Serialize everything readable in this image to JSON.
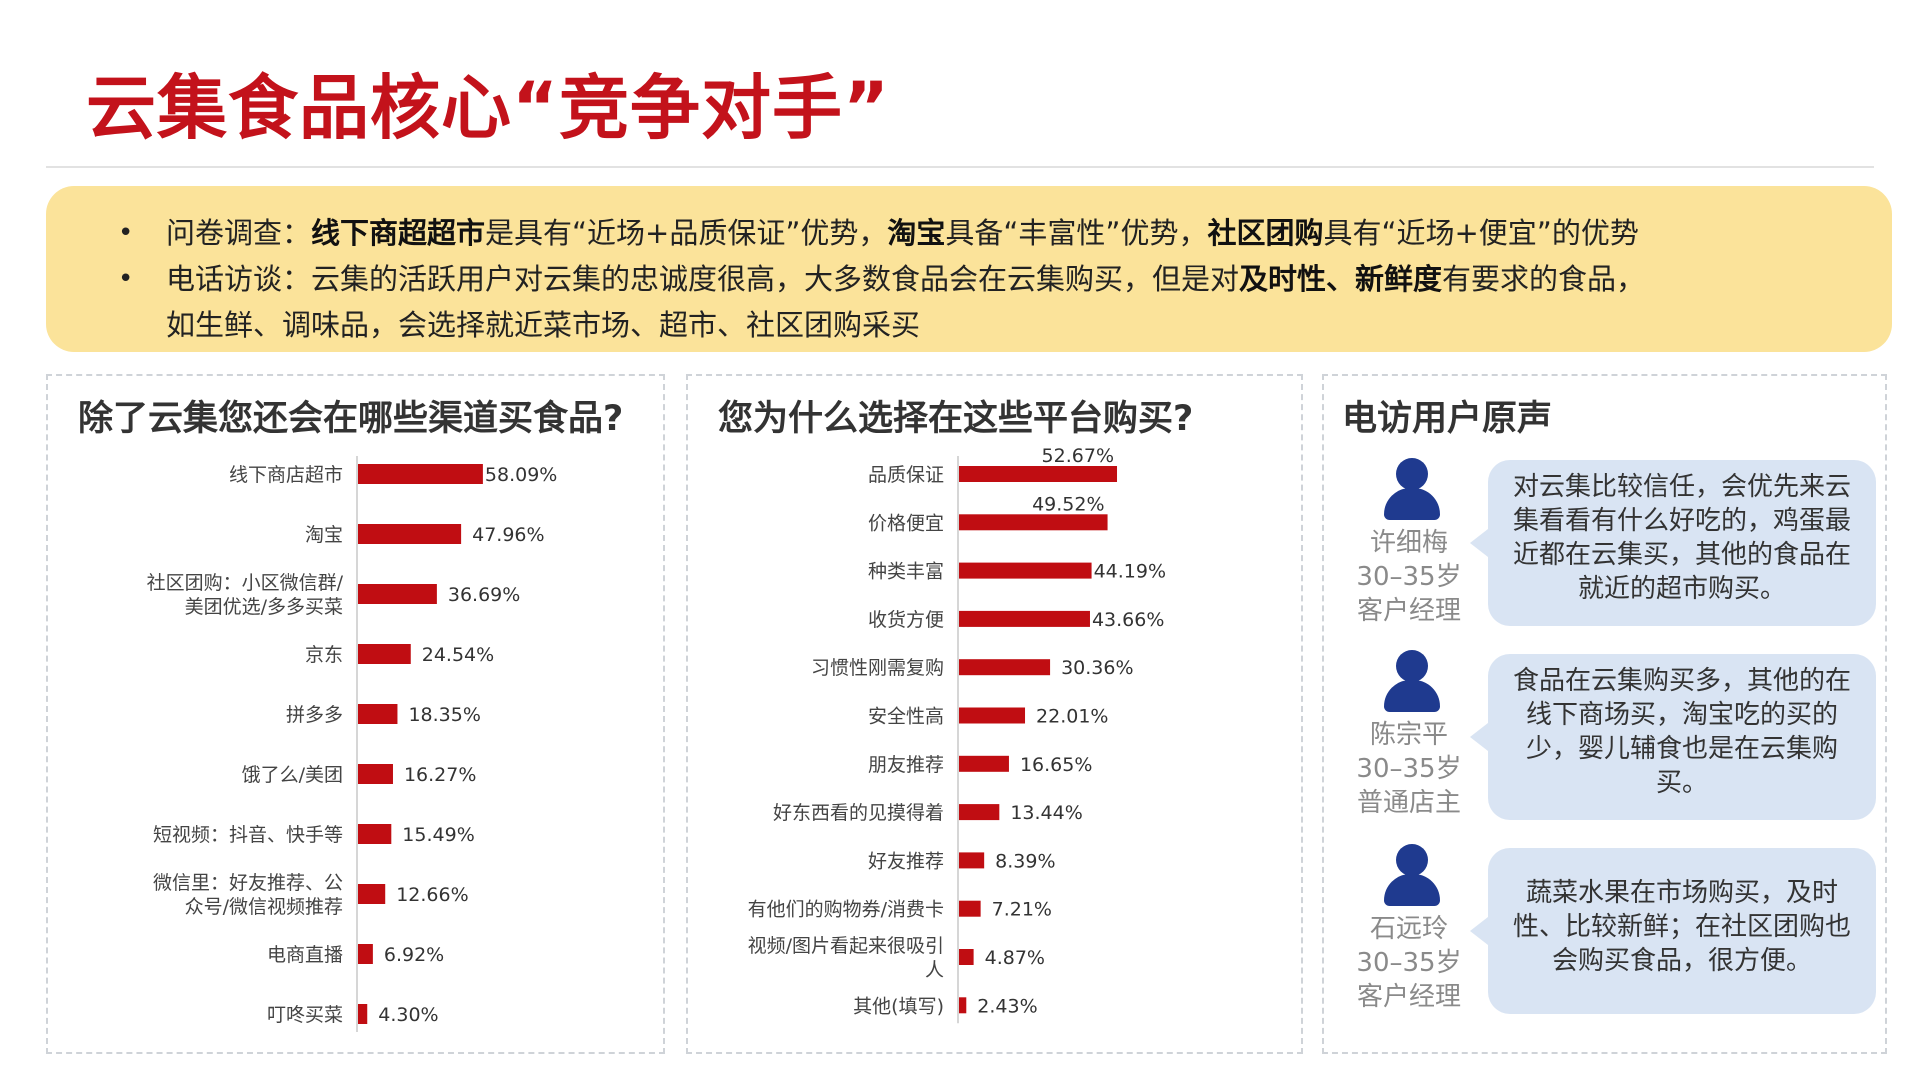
{
  "title": "云集食品核心“竞争对手”",
  "summary": {
    "line1": {
      "prefix": "问卷调查：",
      "b1": "线下商超超市",
      "t1": "是具有“近场+品质保证”优势，",
      "b2": "淘宝",
      "t2": "具备“丰富性”优势，",
      "b3": "社区团购",
      "t3": "具有“近场+便宜”的优势"
    },
    "line2": {
      "prefix": "电话访谈：云集的活跃用户对云集的忠诚度很高，大多数食品会在云集购买，但是对",
      "b1": "及时性、新鲜度",
      "t1": "有要求的食品，",
      "cont": "如生鲜、调味品，会选择就近菜市场、超市、社区团购采买"
    }
  },
  "chart_data": [
    {
      "type": "bar",
      "orientation": "horizontal",
      "title": "除了云集您还会在哪些渠道买食品?",
      "categories": [
        [
          "线下商店超市"
        ],
        [
          "淘宝"
        ],
        [
          "社区团购：小区微信群/",
          "美团优选/多多买菜"
        ],
        [
          "京东"
        ],
        [
          "拼多多"
        ],
        [
          "饿了么/美团"
        ],
        [
          "短视频：抖音、快手等"
        ],
        [
          "微信里：好友推荐、公",
          "众号/微信视频推荐"
        ],
        [
          "电商直播"
        ],
        [
          "叮咚买菜"
        ]
      ],
      "values": [
        58.09,
        47.96,
        36.69,
        24.54,
        18.35,
        16.27,
        15.49,
        12.66,
        6.92,
        4.3
      ],
      "value_labels": [
        "58.09%",
        "47.96%",
        "36.69%",
        "24.54%",
        "18.35%",
        "16.27%",
        "15.49%",
        "12.66%",
        "6.92%",
        "4.30%"
      ],
      "color": "#c00d12"
    },
    {
      "type": "bar",
      "orientation": "horizontal",
      "title": "您为什么选择在这些平台购买?",
      "categories": [
        [
          "品质保证"
        ],
        [
          "价格便宜"
        ],
        [
          "种类丰富"
        ],
        [
          "收货方便"
        ],
        [
          "习惯性刚需复购"
        ],
        [
          "安全性高"
        ],
        [
          "朋友推荐"
        ],
        [
          "好东西看的见摸得着"
        ],
        [
          "好友推荐"
        ],
        [
          "有他们的购物券/消费卡"
        ],
        [
          "视频/图片看起来很吸引",
          "人"
        ],
        [
          "其他(填写)"
        ]
      ],
      "values": [
        52.67,
        49.52,
        44.19,
        43.66,
        30.36,
        22.01,
        16.65,
        13.44,
        8.39,
        7.21,
        4.87,
        2.43
      ],
      "value_labels": [
        "52.67%",
        "49.52%",
        "44.19%",
        "43.66%",
        "30.36%",
        "22.01%",
        "16.65%",
        "13.44%",
        "8.39%",
        "7.21%",
        "4.87%",
        "2.43%"
      ],
      "color": "#c00d12"
    }
  ],
  "voices": {
    "title": "电访用户原声",
    "items": [
      {
        "name": "许细梅",
        "age": "30–35岁",
        "role": "客户经理",
        "quote": "对云集比较信任，会优先来云集看看有什么好吃的，鸡蛋最近都在云集买，其他的食品在就近的超市购买。"
      },
      {
        "name": "陈宗平",
        "age": "30–35岁",
        "role": "普通店主",
        "quote": "食品在云集购买多，其他的在线下商场买，淘宝吃的买的少，婴儿辅食也是在云集购买。"
      },
      {
        "name": "石远玲",
        "age": "30–35岁",
        "role": "客户经理",
        "quote": "蔬菜水果在市场购买，及时性、比较新鲜；在社区团购也会购买食品，很方便。"
      }
    ]
  }
}
